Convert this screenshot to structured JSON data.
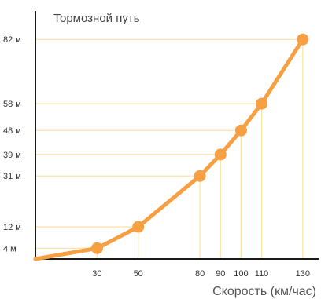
{
  "chart_data": {
    "type": "line",
    "title": "Тормозной путь",
    "xlabel": "Скорость (км/час)",
    "ylabel": "",
    "x": [
      0,
      30,
      50,
      80,
      90,
      100,
      110,
      130
    ],
    "y": [
      0,
      4,
      12,
      31,
      39,
      48,
      58,
      82
    ],
    "marked_points": [
      {
        "x": 30,
        "y": 4
      },
      {
        "x": 50,
        "y": 12
      },
      {
        "x": 80,
        "y": 31
      },
      {
        "x": 90,
        "y": 39
      },
      {
        "x": 100,
        "y": 48
      },
      {
        "x": 110,
        "y": 58
      },
      {
        "x": 130,
        "y": 82
      }
    ],
    "x_tick_labels": [
      "30",
      "50",
      "80",
      "90",
      "100",
      "110",
      "130"
    ],
    "y_tick_labels": [
      "4 м",
      "12 м",
      "31 м",
      "39 м",
      "48 м",
      "58 м",
      "82 м"
    ],
    "xlim": [
      0,
      130
    ],
    "ylim": [
      0,
      82
    ],
    "grid": "guide lines from each marked point to both axes",
    "legend": "none",
    "colors": {
      "line": "#F7A043",
      "marker": "#F7A043",
      "guide": "#FCE3A8",
      "axis": "#1a1a1a"
    }
  }
}
